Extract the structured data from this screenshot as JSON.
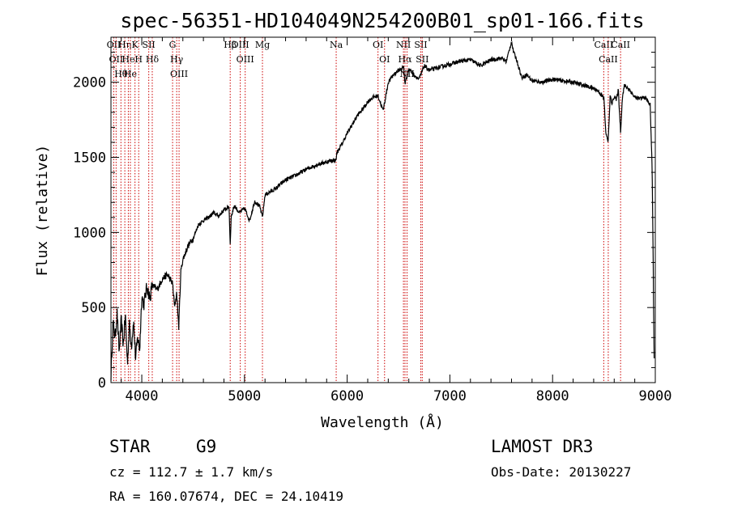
{
  "chart_data": {
    "type": "line",
    "title": "spec-56351-HD104049N254200B01_sp01-166.fits",
    "xlabel": "Wavelength (Å)",
    "ylabel": "Flux (relative)",
    "xlim": [
      3700,
      9000
    ],
    "ylim": [
      0,
      2300
    ],
    "x_ticks": [
      4000,
      5000,
      6000,
      7000,
      8000,
      9000
    ],
    "y_ticks": [
      0,
      500,
      1000,
      1500,
      2000
    ],
    "line_color": "#000000",
    "marker_color": "#cc0000",
    "series": [
      {
        "name": "flux",
        "x": [
          3700,
          3720,
          3740,
          3760,
          3780,
          3800,
          3820,
          3840,
          3860,
          3880,
          3900,
          3920,
          3940,
          3960,
          3980,
          4000,
          4020,
          4050,
          4080,
          4100,
          4150,
          4200,
          4250,
          4300,
          4320,
          4340,
          4360,
          4380,
          4400,
          4450,
          4500,
          4550,
          4600,
          4650,
          4700,
          4750,
          4800,
          4850,
          4861,
          4870,
          4900,
          4950,
          5000,
          5050,
          5100,
          5150,
          5175,
          5200,
          5300,
          5400,
          5500,
          5600,
          5700,
          5800,
          5850,
          5890,
          5900,
          5950,
          6000,
          6050,
          6100,
          6150,
          6200,
          6250,
          6300,
          6350,
          6400,
          6450,
          6500,
          6550,
          6563,
          6600,
          6650,
          6700,
          6750,
          6800,
          6900,
          7000,
          7100,
          7200,
          7300,
          7400,
          7500,
          7550,
          7600,
          7620,
          7650,
          7700,
          7750,
          7800,
          7900,
          8000,
          8100,
          8200,
          8300,
          8400,
          8450,
          8500,
          8520,
          8542,
          8560,
          8580,
          8600,
          8620,
          8640,
          8662,
          8680,
          8700,
          8750,
          8800,
          8850,
          8900,
          8950,
          8970,
          8990
        ],
        "y": [
          50,
          400,
          300,
          460,
          200,
          420,
          250,
          450,
          130,
          380,
          250,
          410,
          160,
          300,
          220,
          580,
          520,
          640,
          560,
          650,
          620,
          690,
          720,
          660,
          500,
          600,
          370,
          740,
          820,
          910,
          960,
          1050,
          1080,
          1100,
          1130,
          1110,
          1150,
          1170,
          920,
          1100,
          1180,
          1130,
          1160,
          1080,
          1210,
          1170,
          1100,
          1250,
          1290,
          1350,
          1380,
          1420,
          1450,
          1470,
          1480,
          1480,
          1530,
          1590,
          1660,
          1720,
          1780,
          1820,
          1870,
          1900,
          1910,
          1810,
          2000,
          2050,
          2080,
          2100,
          1990,
          2090,
          2050,
          2020,
          2110,
          2080,
          2100,
          2120,
          2140,
          2150,
          2110,
          2150,
          2160,
          2140,
          2270,
          2200,
          2150,
          2030,
          2050,
          2010,
          2000,
          2020,
          2010,
          2000,
          1980,
          1960,
          1940,
          1890,
          1650,
          1610,
          1900,
          1860,
          1910,
          1880,
          1950,
          1670,
          1900,
          1980,
          1950,
          1900,
          1890,
          1900,
          1850,
          1410,
          100
        ]
      }
    ],
    "markers": [
      {
        "wl": 3727,
        "label": "OII"
      },
      {
        "wl": 3750,
        "label": "OII"
      },
      {
        "wl": 3797,
        "label": "Hθ"
      },
      {
        "wl": 3835,
        "label": "Hη"
      },
      {
        "wl": 3869,
        "label": "He"
      },
      {
        "wl": 3889,
        "label": "He"
      },
      {
        "wl": 3934,
        "label": "K"
      },
      {
        "wl": 3970,
        "label": "H"
      },
      {
        "wl": 4068,
        "label": "SII"
      },
      {
        "wl": 4102,
        "label": "Hδ"
      },
      {
        "wl": 4300,
        "label": "G"
      },
      {
        "wl": 4340,
        "label": "Hγ"
      },
      {
        "wl": 4363,
        "label": "OIII"
      },
      {
        "wl": 4861,
        "label": "Hβ"
      },
      {
        "wl": 4959,
        "label": "OIII"
      },
      {
        "wl": 5007,
        "label": "OIII"
      },
      {
        "wl": 5175,
        "label": "Mg"
      },
      {
        "wl": 5893,
        "label": "Na"
      },
      {
        "wl": 6300,
        "label": "OI"
      },
      {
        "wl": 6364,
        "label": "OI"
      },
      {
        "wl": 6548,
        "label": "NII"
      },
      {
        "wl": 6563,
        "label": "Hα"
      },
      {
        "wl": 6583,
        "label": "NII"
      },
      {
        "wl": 6717,
        "label": "SII"
      },
      {
        "wl": 6731,
        "label": "SII"
      },
      {
        "wl": 8498,
        "label": "CaII"
      },
      {
        "wl": 8542,
        "label": "CaII"
      },
      {
        "wl": 8662,
        "label": "CaII"
      }
    ]
  },
  "footer": {
    "object_class": "STAR",
    "subclass": "G9",
    "survey": "LAMOST DR3",
    "redshift_line": "cz = 112.7 ± 1.7 km/s",
    "obs_date_line": "Obs-Date: 20130227",
    "coords_line": "RA = 160.07674, DEC =  24.10419"
  }
}
